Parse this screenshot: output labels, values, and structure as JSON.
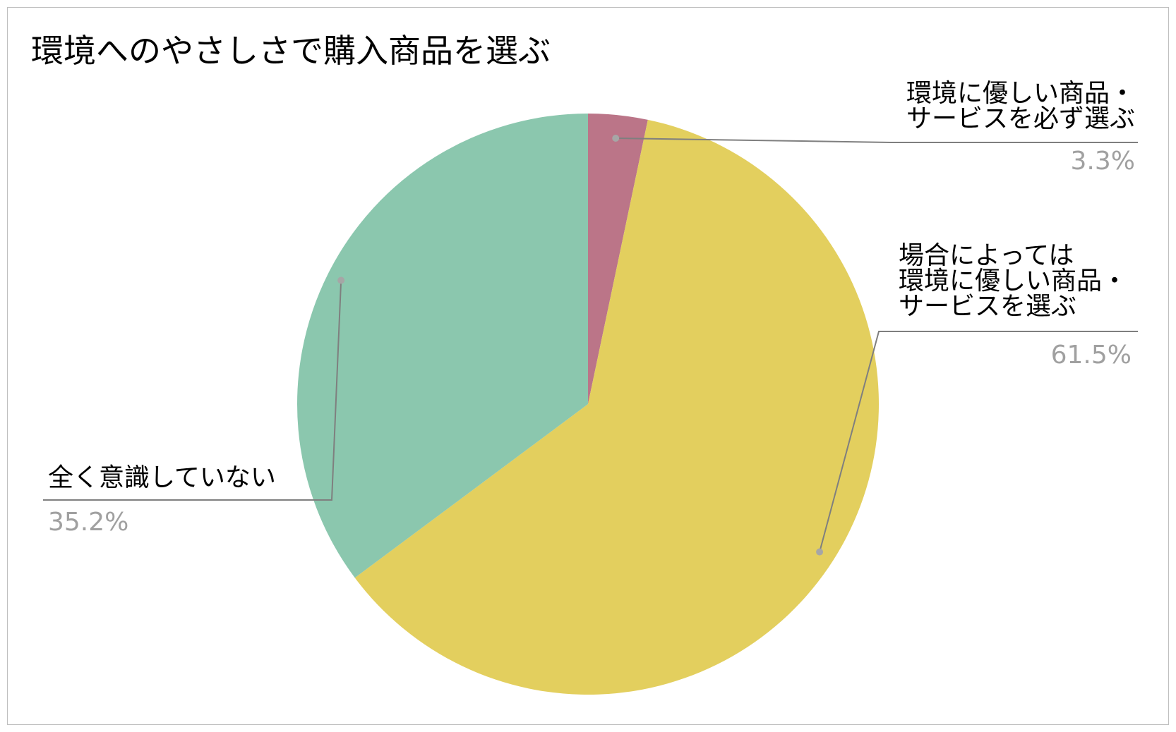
{
  "chart_data": {
    "type": "pie",
    "title": "環境へのやさしさで購入商品を選ぶ",
    "slices": [
      {
        "label_lines": [
          "環境に優しい商品・",
          "サービスを必ず選ぶ"
        ],
        "value": 3.3,
        "value_label": "3.3%",
        "color": "#bb7588"
      },
      {
        "label_lines": [
          "場合によっては",
          "環境に優しい商品・",
          "サービスを選ぶ"
        ],
        "value": 61.5,
        "value_label": "61.5%",
        "color": "#e3cf5e"
      },
      {
        "label_lines": [
          "全く意識していない"
        ],
        "value": 35.2,
        "value_label": "35.2%",
        "color": "#8bc7ae"
      }
    ],
    "start_angle_deg": 0,
    "direction": "clockwise",
    "legend": "none"
  }
}
